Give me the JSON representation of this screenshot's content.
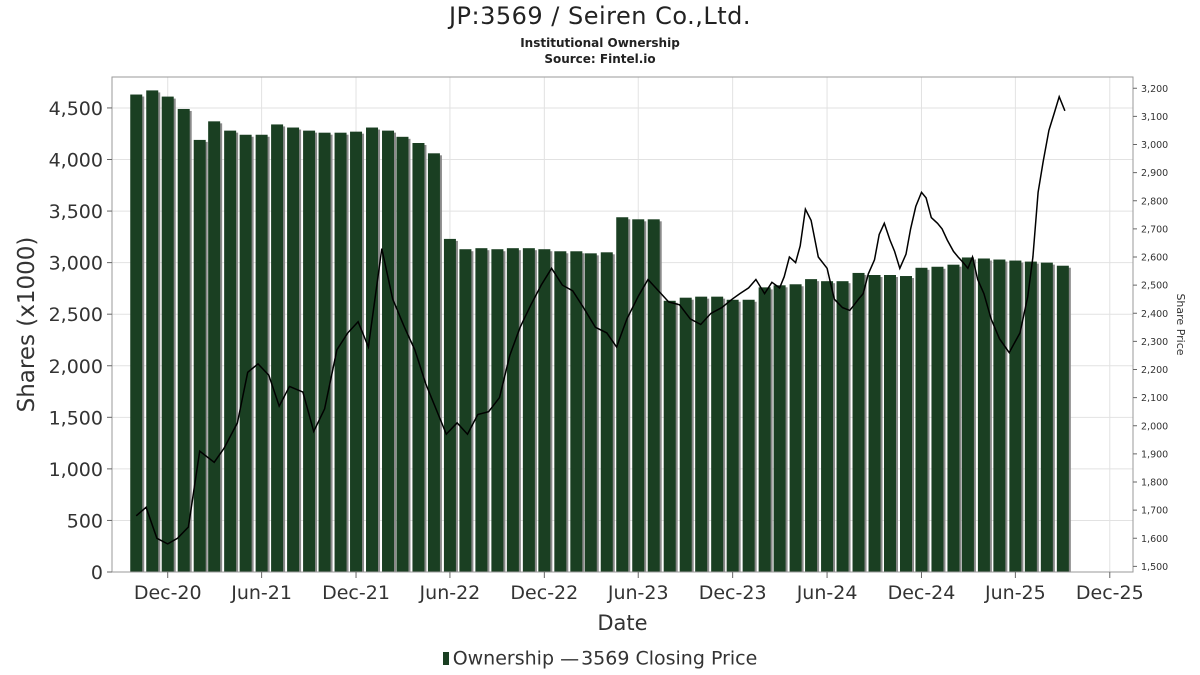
{
  "header": {
    "title": "JP:3569 / Seiren Co.,Ltd.",
    "subtitle": "Institutional Ownership",
    "source": "Source: Fintel.io"
  },
  "legend": {
    "ownership_label": "Ownership",
    "line_symbol": "—",
    "price_label": "3569 Closing Price"
  },
  "colors": {
    "bar": "#1a3f22",
    "bar_shadow": "#8a8a8a",
    "line": "#000000",
    "grid": "#e2e2e2",
    "frame": "#9a9a9a"
  },
  "chart_data": {
    "type": "bar",
    "xlabel": "Date",
    "ylabel": "Shares (x1000)",
    "y2label": "Share Price",
    "ylim": [
      0,
      4800
    ],
    "y2lim": [
      1480,
      3240
    ],
    "grid": true,
    "legend_position": "bottom",
    "x_ticks": [
      "Dec-20",
      "Jun-21",
      "Dec-21",
      "Jun-22",
      "Dec-22",
      "Jun-23",
      "Dec-23",
      "Jun-24",
      "Dec-24",
      "Jun-25",
      "Dec-25"
    ],
    "y_ticks": [
      "0",
      "500",
      "1,000",
      "1,500",
      "2,000",
      "2,500",
      "3,000",
      "3,500",
      "4,000",
      "4,500"
    ],
    "y2_ticks": [
      "1,500",
      "1,600",
      "1,700",
      "1,800",
      "1,900",
      "2,000",
      "2,100",
      "2,200",
      "2,300",
      "2,400",
      "2,500",
      "2,600",
      "2,700",
      "2,800",
      "2,900",
      "3,000",
      "3,100",
      "3,200"
    ],
    "series": [
      {
        "name": "Ownership",
        "type": "bar",
        "dates": [
          "2020-10-01",
          "2020-11-01",
          "2020-12-01",
          "2021-01-01",
          "2021-02-01",
          "2021-03-01",
          "2021-04-01",
          "2021-05-01",
          "2021-06-01",
          "2021-07-01",
          "2021-08-01",
          "2021-09-01",
          "2021-10-01",
          "2021-11-01",
          "2021-12-01",
          "2022-01-01",
          "2022-02-01",
          "2022-03-01",
          "2022-04-01",
          "2022-05-01",
          "2022-06-01",
          "2022-07-01",
          "2022-08-01",
          "2022-09-01",
          "2022-10-01",
          "2022-11-01",
          "2022-12-01",
          "2023-01-01",
          "2023-02-01",
          "2023-03-01",
          "2023-04-01",
          "2023-05-01",
          "2023-06-01",
          "2023-07-01",
          "2023-08-01",
          "2023-09-01",
          "2023-10-01",
          "2023-11-01",
          "2023-12-01",
          "2024-01-01",
          "2024-02-01",
          "2024-03-01",
          "2024-04-01",
          "2024-05-01",
          "2024-06-01",
          "2024-07-01",
          "2024-08-01",
          "2024-09-01",
          "2024-10-01",
          "2024-11-01",
          "2024-12-01",
          "2025-01-01",
          "2025-02-01",
          "2025-03-01",
          "2025-04-01",
          "2025-05-01",
          "2025-06-01",
          "2025-07-01",
          "2025-08-01",
          "2025-09-01"
        ],
        "values": [
          4630,
          4670,
          4610,
          4490,
          4190,
          4370,
          4280,
          4240,
          4240,
          4340,
          4310,
          4280,
          4260,
          4260,
          4270,
          4310,
          4280,
          4220,
          4160,
          4060,
          3230,
          3130,
          3140,
          3130,
          3140,
          3140,
          3130,
          3110,
          3110,
          3090,
          3100,
          3440,
          3420,
          3420,
          2630,
          2660,
          2670,
          2670,
          2640,
          2640,
          2760,
          2780,
          2790,
          2840,
          2820,
          2820,
          2900,
          2880,
          2880,
          2870,
          2950,
          2960,
          2980,
          3050,
          3040,
          3030,
          3020,
          3010,
          3000,
          2970
        ]
      },
      {
        "name": "3569 Closing Price",
        "type": "line",
        "dates": [
          "2020-10-01",
          "2020-10-20",
          "2020-11-10",
          "2020-12-01",
          "2020-12-20",
          "2021-01-10",
          "2021-02-01",
          "2021-03-01",
          "2021-03-20",
          "2021-04-15",
          "2021-05-05",
          "2021-05-25",
          "2021-06-15",
          "2021-07-05",
          "2021-07-25",
          "2021-08-20",
          "2021-09-10",
          "2021-10-01",
          "2021-10-25",
          "2021-11-15",
          "2021-12-05",
          "2021-12-25",
          "2022-01-20",
          "2022-02-10",
          "2022-03-05",
          "2022-03-25",
          "2022-04-15",
          "2022-05-05",
          "2022-05-25",
          "2022-06-15",
          "2022-07-05",
          "2022-07-25",
          "2022-08-15",
          "2022-09-05",
          "2022-09-25",
          "2022-10-15",
          "2022-11-05",
          "2022-11-25",
          "2022-12-15",
          "2023-01-05",
          "2023-01-25",
          "2023-02-15",
          "2023-03-10",
          "2023-04-01",
          "2023-04-20",
          "2023-05-10",
          "2023-06-01",
          "2023-06-20",
          "2023-07-10",
          "2023-07-30",
          "2023-08-20",
          "2023-09-10",
          "2023-09-30",
          "2023-10-20",
          "2023-11-10",
          "2023-11-30",
          "2023-12-15",
          "2024-01-01",
          "2024-01-15",
          "2024-02-01",
          "2024-02-15",
          "2024-03-01",
          "2024-03-10",
          "2024-03-20",
          "2024-04-01",
          "2024-04-10",
          "2024-04-20",
          "2024-05-01",
          "2024-05-15",
          "2024-06-01",
          "2024-06-15",
          "2024-07-01",
          "2024-07-15",
          "2024-08-01",
          "2024-08-10",
          "2024-08-20",
          "2024-09-01",
          "2024-09-10",
          "2024-09-20",
          "2024-10-01",
          "2024-10-10",
          "2024-10-20",
          "2024-11-01",
          "2024-11-10",
          "2024-11-20",
          "2024-12-01",
          "2024-12-10",
          "2024-12-20",
          "2025-01-01",
          "2025-01-10",
          "2025-01-20",
          "2025-02-01",
          "2025-02-10",
          "2025-02-20",
          "2025-03-01",
          "2025-03-10",
          "2025-03-20",
          "2025-04-01",
          "2025-04-15",
          "2025-05-01",
          "2025-05-20",
          "2025-06-10",
          "2025-06-25",
          "2025-07-05",
          "2025-07-15",
          "2025-07-25",
          "2025-08-05",
          "2025-08-15",
          "2025-08-25",
          "2025-09-05"
        ],
        "values": [
          1680,
          1710,
          1600,
          1580,
          1600,
          1640,
          1910,
          1870,
          1920,
          2010,
          2190,
          2220,
          2180,
          2070,
          2140,
          2120,
          1980,
          2060,
          2270,
          2330,
          2370,
          2280,
          2630,
          2450,
          2350,
          2270,
          2150,
          2060,
          1970,
          2010,
          1970,
          2040,
          2050,
          2100,
          2250,
          2350,
          2430,
          2500,
          2560,
          2500,
          2480,
          2420,
          2350,
          2330,
          2280,
          2380,
          2460,
          2520,
          2480,
          2440,
          2430,
          2380,
          2360,
          2400,
          2420,
          2450,
          2470,
          2490,
          2520,
          2470,
          2510,
          2490,
          2530,
          2600,
          2580,
          2640,
          2770,
          2730,
          2600,
          2560,
          2450,
          2420,
          2410,
          2450,
          2470,
          2540,
          2590,
          2680,
          2720,
          2660,
          2620,
          2560,
          2610,
          2700,
          2780,
          2830,
          2810,
          2740,
          2720,
          2700,
          2660,
          2620,
          2600,
          2580,
          2560,
          2600,
          2520,
          2470,
          2380,
          2310,
          2260,
          2330,
          2460,
          2600,
          2830,
          2940,
          3050,
          3110,
          3170,
          3120
        ]
      }
    ]
  }
}
